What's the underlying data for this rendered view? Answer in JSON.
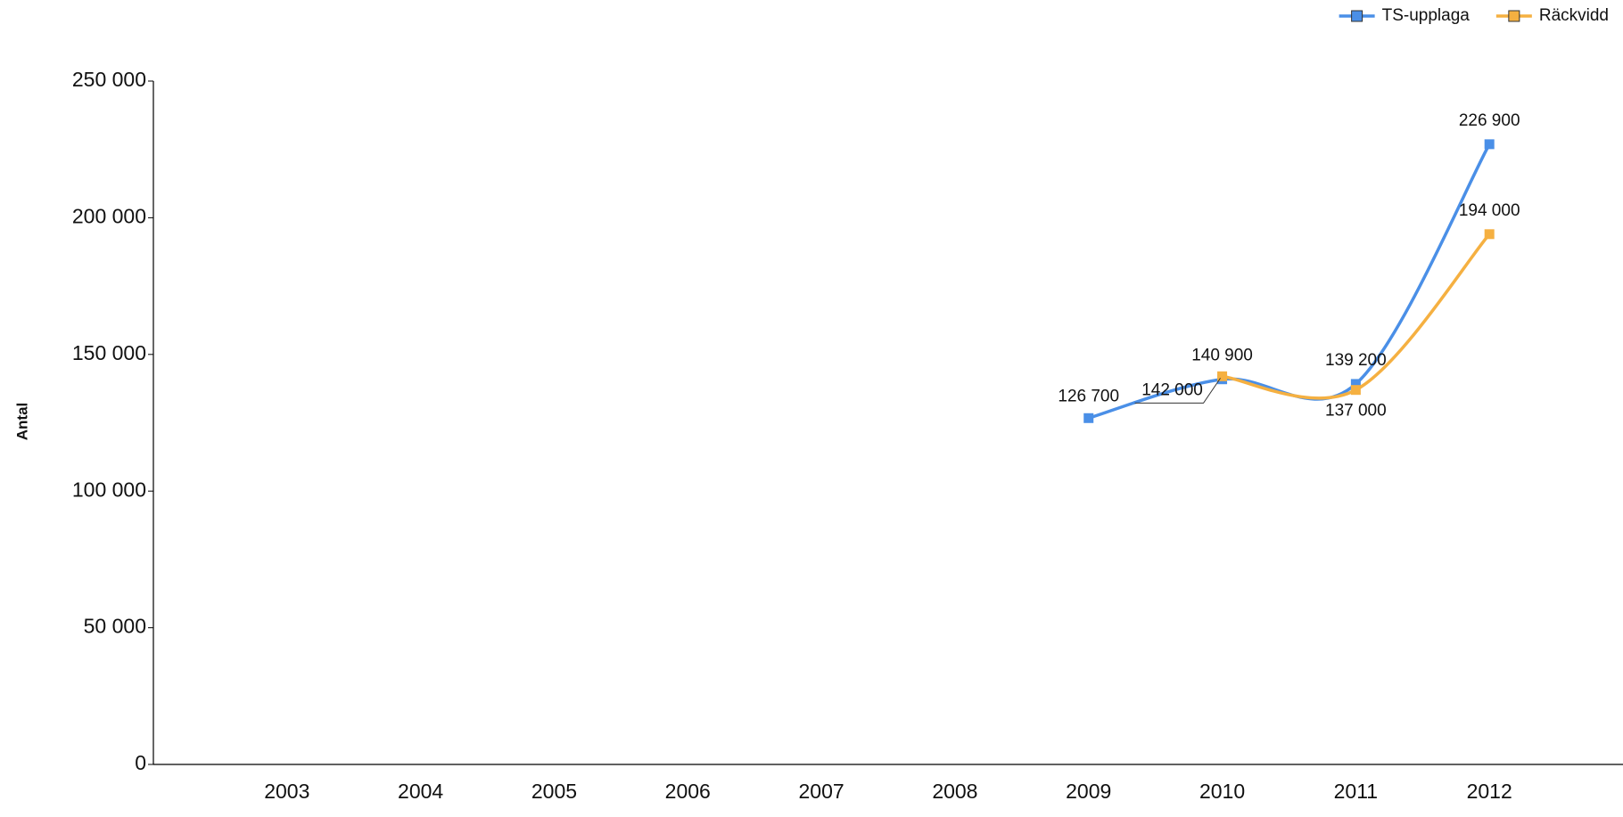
{
  "chart_data": {
    "type": "line",
    "categories": [
      "2003",
      "2004",
      "2005",
      "2006",
      "2007",
      "2008",
      "2009",
      "2010",
      "2011",
      "2012"
    ],
    "series": [
      {
        "name": "TS-upplaga",
        "color": "#4a8fe7",
        "values": [
          null,
          null,
          null,
          null,
          null,
          null,
          126700,
          140900,
          139200,
          226900
        ],
        "value_labels": [
          null,
          null,
          null,
          null,
          null,
          null,
          "126 700",
          "140 900",
          "139 200",
          "226 900"
        ]
      },
      {
        "name": "Räckvidd",
        "color": "#f5b041",
        "values": [
          null,
          null,
          null,
          null,
          null,
          null,
          null,
          142000,
          137000,
          194000
        ],
        "value_labels": [
          null,
          null,
          null,
          null,
          null,
          null,
          null,
          "142 000",
          "137 000",
          "194 000"
        ]
      }
    ],
    "ylabel": "Antal",
    "ylim": [
      0,
      250000
    ],
    "yticks": [
      0,
      {
        "value": 50000,
        "label": "50 000"
      },
      {
        "value": 100000,
        "label": "100 000"
      },
      {
        "value": 150000,
        "label": "150 000"
      },
      {
        "value": 200000,
        "label": "200 000"
      },
      {
        "value": 250000,
        "label": "250 000"
      }
    ],
    "legend": "top-right",
    "smooth": true
  }
}
